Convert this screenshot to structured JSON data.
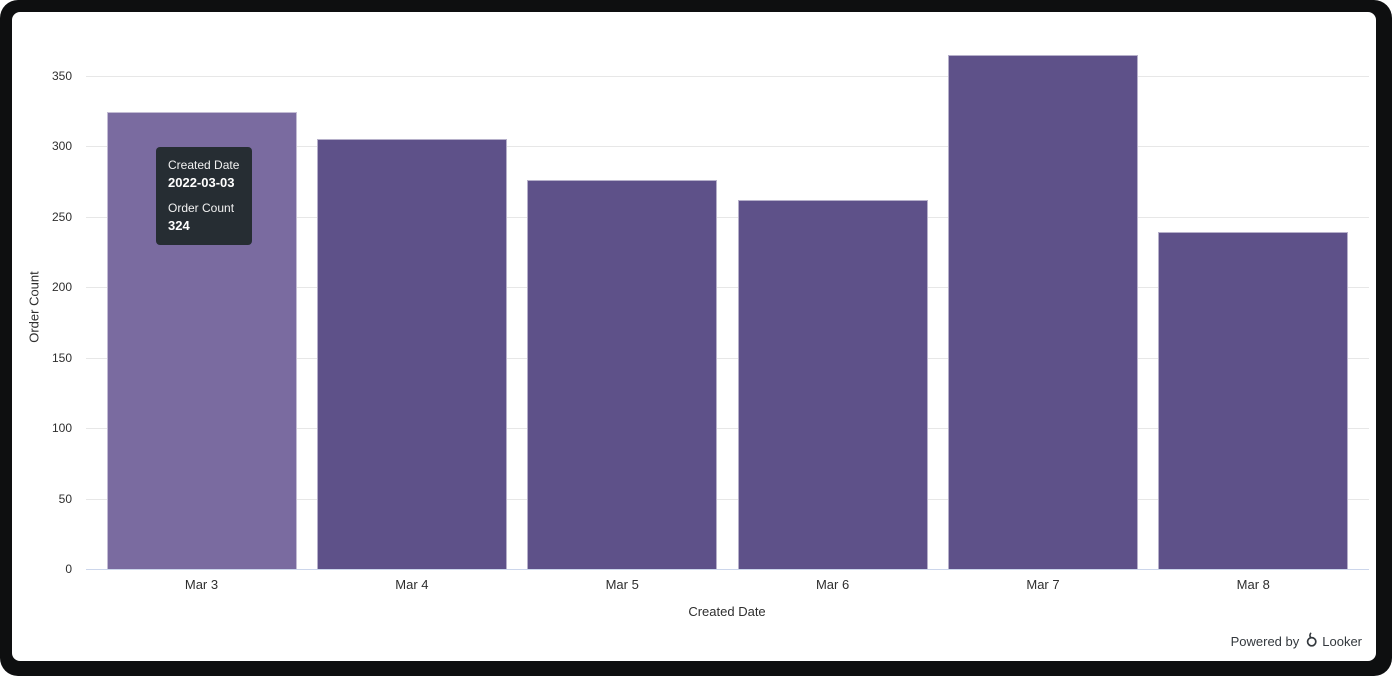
{
  "chart_data": {
    "type": "bar",
    "categories": [
      "Mar 3",
      "Mar 4",
      "Mar 5",
      "Mar 6",
      "Mar 7",
      "Mar 8"
    ],
    "values": [
      324,
      305,
      276,
      262,
      365,
      239
    ],
    "xlabel": "Created Date",
    "ylabel": "Order Count",
    "yticks": [
      0,
      50,
      100,
      150,
      200,
      250,
      300,
      350
    ],
    "ylim": [
      0,
      365
    ],
    "grid": true,
    "legend": "none",
    "hovered_index": 0,
    "colors": {
      "bar": "#5e5189",
      "bar_hover": "#7a6ba0",
      "gridline": "#e7e7e7",
      "axis_line": "#ccd6eb",
      "tooltip_bg": "#262d33"
    }
  },
  "tooltip": {
    "rows": [
      {
        "label": "Created Date",
        "value": "2022-03-03"
      },
      {
        "label": "Order Count",
        "value": "324"
      }
    ]
  },
  "footer": {
    "powered_by": "Powered by",
    "brand": "Looker"
  }
}
